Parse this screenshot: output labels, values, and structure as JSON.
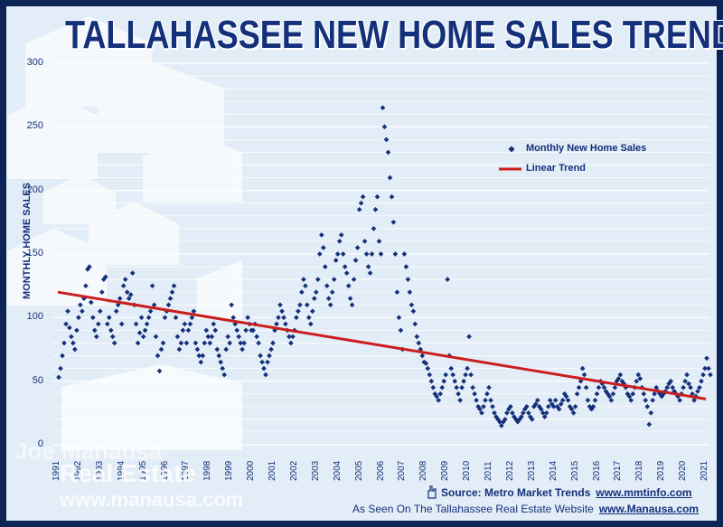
{
  "chart_data": {
    "type": "scatter",
    "title": "TALLAHASSEE NEW HOME SALES TREND",
    "ylabel": "MONTHLY HOME SALES",
    "xlabel": "",
    "ylim": [
      0,
      300
    ],
    "yticks": [
      "0",
      "50",
      "100",
      "150",
      "200",
      "250",
      "300"
    ],
    "xticks": [
      "1991",
      "1992",
      "1993",
      "1994",
      "1995",
      "1996",
      "1997",
      "1998",
      "1999",
      "2000",
      "2001",
      "2002",
      "2003",
      "2004",
      "2005",
      "2006",
      "2007",
      "2008",
      "2009",
      "2010",
      "2011",
      "2012",
      "2013",
      "2014",
      "2015",
      "2016",
      "2017",
      "2018",
      "2019",
      "2020",
      "2021"
    ],
    "grid": true,
    "legend_position": "top-right",
    "series": [
      {
        "name": "Monthly New Home Sales",
        "color": "#14307a",
        "yearly_values": [
          [
            53,
            60,
            70,
            80,
            95,
            105,
            92,
            85,
            80,
            75,
            90,
            100
          ],
          [
            110,
            105,
            115,
            125,
            138,
            140,
            112,
            100,
            90,
            85,
            95,
            105
          ],
          [
            120,
            130,
            132,
            95,
            100,
            90,
            85,
            80,
            105,
            110,
            115,
            95
          ],
          [
            125,
            130,
            120,
            115,
            118,
            135,
            110,
            95,
            80,
            88,
            100,
            85
          ],
          [
            90,
            95,
            100,
            105,
            125,
            110,
            85,
            70,
            58,
            75,
            80,
            100
          ],
          [
            105,
            110,
            115,
            120,
            125,
            100,
            85,
            75,
            80,
            90,
            95,
            80
          ],
          [
            90,
            95,
            100,
            105,
            80,
            75,
            70,
            65,
            70,
            80,
            90,
            85
          ],
          [
            80,
            85,
            95,
            90,
            75,
            70,
            65,
            60,
            55,
            75,
            85,
            80
          ],
          [
            110,
            100,
            95,
            90,
            85,
            80,
            75,
            80,
            90,
            100,
            95,
            90
          ],
          [
            90,
            95,
            85,
            80,
            70,
            65,
            60,
            55,
            65,
            70,
            75,
            80
          ],
          [
            90,
            95,
            100,
            110,
            105,
            100,
            95,
            90,
            85,
            80,
            85,
            90
          ],
          [
            100,
            105,
            110,
            120,
            130,
            125,
            110,
            100,
            95,
            105,
            115,
            120
          ],
          [
            130,
            150,
            165,
            155,
            140,
            125,
            115,
            110,
            120,
            130,
            145,
            150
          ],
          [
            160,
            165,
            150,
            140,
            135,
            125,
            115,
            110,
            130,
            145,
            155,
            185
          ],
          [
            190,
            195,
            160,
            150,
            140,
            135,
            150,
            170,
            185,
            195,
            160,
            150
          ],
          [
            265,
            250,
            240,
            230,
            210,
            195,
            175,
            150,
            120,
            100,
            90,
            75
          ],
          [
            150,
            140,
            130,
            120,
            110,
            105,
            95,
            85,
            80,
            75,
            70,
            65
          ],
          [
            64,
            60,
            55,
            50,
            45,
            40,
            38,
            35,
            40,
            45,
            50,
            55
          ],
          [
            130,
            70,
            60,
            55,
            50,
            45,
            40,
            35,
            45,
            50,
            55,
            60
          ],
          [
            85,
            55,
            45,
            40,
            35,
            30,
            28,
            25,
            30,
            35,
            40,
            45
          ],
          [
            35,
            30,
            25,
            22,
            20,
            18,
            15,
            18,
            20,
            25,
            28,
            30
          ],
          [
            25,
            22,
            20,
            18,
            20,
            22,
            25,
            28,
            30,
            25,
            22,
            20
          ],
          [
            30,
            32,
            35,
            30,
            28,
            25,
            22,
            25,
            30,
            35,
            32,
            30
          ],
          [
            35,
            30,
            28,
            32,
            35,
            40,
            38,
            35,
            30,
            28,
            25,
            30
          ],
          [
            40,
            45,
            50,
            60,
            55,
            45,
            35,
            30,
            28,
            30,
            35,
            40
          ],
          [
            45,
            50,
            48,
            45,
            42,
            40,
            38,
            35,
            40,
            45,
            50,
            52
          ],
          [
            55,
            50,
            48,
            45,
            40,
            38,
            35,
            40,
            45,
            50,
            55,
            52
          ],
          [
            45,
            40,
            35,
            30,
            16,
            25,
            35,
            40,
            45,
            42,
            40,
            38
          ],
          [
            40,
            42,
            45,
            48,
            50,
            45,
            42,
            40,
            38,
            35,
            40,
            45
          ],
          [
            50,
            55,
            48,
            45,
            40,
            35,
            38,
            42,
            45,
            50,
            55,
            60
          ],
          [
            68,
            60,
            55,
            50,
            45,
            40,
            48,
            65,
            52,
            50,
            48,
            45
          ]
        ]
      },
      {
        "name": "Linear Trend",
        "color": "#cc1e1e",
        "x": [
          "1991",
          "2021"
        ],
        "values": [
          120,
          36
        ]
      }
    ]
  },
  "branding": {
    "top": "Joe Manausa",
    "line1": "Real Estate",
    "line2": "www.manausa.com"
  },
  "footer": {
    "source_label": "Source:  Metro Market Trends",
    "source_url": "www.mmtinfo.com",
    "seen_label": "As Seen On The Tallahassee Real Estate Website",
    "seen_url": "www.Manausa.com"
  }
}
